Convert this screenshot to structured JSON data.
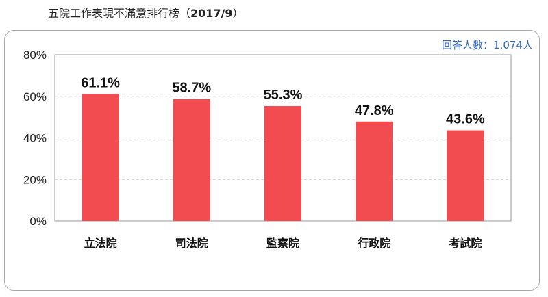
{
  "title_main": "五院工作表現不滿意排行榜（",
  "title_date": "2017/9",
  "title_close": "）",
  "respondents": "回答人數：1,074人",
  "chart_data": {
    "type": "bar",
    "categories": [
      "立法院",
      "司法院",
      "監察院",
      "行政院",
      "考試院"
    ],
    "values": [
      61.1,
      58.7,
      55.3,
      47.8,
      43.6
    ],
    "value_labels": [
      "61.1%",
      "58.7%",
      "55.3%",
      "47.8%",
      "43.6%"
    ],
    "ylim": [
      0,
      80
    ],
    "yticks": [
      0,
      20,
      40,
      60,
      80
    ],
    "ytick_labels": [
      "0%",
      "20%",
      "40%",
      "60%",
      "80%"
    ],
    "grid": true,
    "bar_color": "#f24b50",
    "grid_color": "#c8c8c8",
    "title": "",
    "xlabel": "",
    "ylabel": ""
  }
}
